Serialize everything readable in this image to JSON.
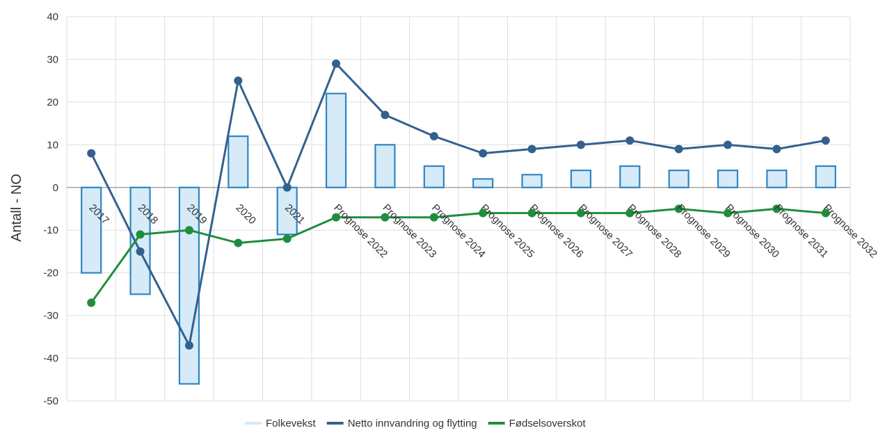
{
  "chart_data": {
    "type": "bar+line",
    "title": "",
    "xlabel": "",
    "ylabel": "Antall - NO",
    "ylim": [
      -50,
      40
    ],
    "y_ticks": [
      40,
      30,
      20,
      10,
      0,
      -10,
      -20,
      -30,
      -40,
      -50
    ],
    "grid": true,
    "legend_position": "bottom",
    "categories": [
      "2017",
      "2018",
      "2019",
      "2020",
      "2021",
      "Prognose 2022",
      "Prognose 2023",
      "Prognose 2024",
      "Prognose 2025",
      "Prognose 2026",
      "Prognose 2027",
      "Prognose 2028",
      "Prognose 2029",
      "Prognose 2030",
      "Prognose 2031",
      "Prognose 2032"
    ],
    "series": [
      {
        "name": "Folkevekst",
        "type": "bar",
        "color": "#2e86c1",
        "fill": "#d6eaf8",
        "values": [
          -20,
          -25,
          -46,
          12,
          -11,
          22,
          10,
          5,
          2,
          3,
          4,
          5,
          4,
          4,
          4,
          5
        ]
      },
      {
        "name": "Netto innvandring og flytting",
        "type": "line",
        "color": "#34608f",
        "values": [
          8,
          -15,
          -37,
          25,
          0,
          29,
          17,
          12,
          8,
          9,
          10,
          11,
          9,
          10,
          9,
          11
        ]
      },
      {
        "name": "Fødselsoverskot",
        "type": "line",
        "color": "#1e8e3e",
        "values": [
          -27,
          -11,
          -10,
          -13,
          -12,
          -7,
          -7,
          -7,
          -6,
          -6,
          -6,
          -6,
          -5,
          -6,
          -5,
          -6
        ]
      }
    ]
  }
}
